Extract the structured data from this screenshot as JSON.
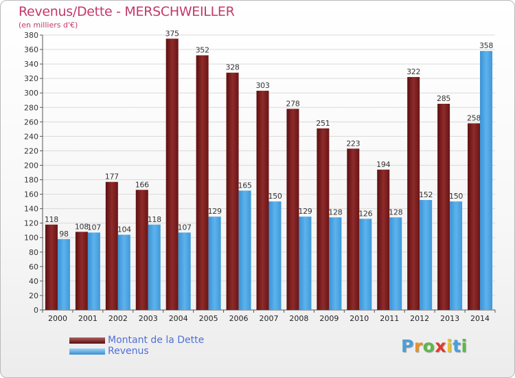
{
  "chart_data": {
    "type": "bar",
    "title": "Revenus/Dette - MERSCHWEILLER",
    "subtitle": "(en milliers d'€)",
    "categories": [
      "2000",
      "2001",
      "2002",
      "2003",
      "2004",
      "2005",
      "2006",
      "2007",
      "2008",
      "2009",
      "2010",
      "2011",
      "2012",
      "2013",
      "2014"
    ],
    "series": [
      {
        "name": "Montant de la Dette",
        "color": "#7a1c1c",
        "values": [
          118,
          108,
          177,
          166,
          375,
          352,
          328,
          303,
          278,
          251,
          223,
          194,
          322,
          285,
          258
        ]
      },
      {
        "name": "Revenus",
        "color": "#4aa3e3",
        "values": [
          98,
          107,
          104,
          118,
          107,
          129,
          165,
          150,
          129,
          128,
          126,
          128,
          152,
          150,
          358
        ]
      }
    ],
    "ylim": [
      0,
      380
    ],
    "ytick_step": 20,
    "grid": true,
    "legend_position": "bottom-left"
  },
  "logo": {
    "text": "Proxiti",
    "letter_colors": [
      "#4a9fd8",
      "#e8902a",
      "#5cb848",
      "#e03a2f",
      "#e8c22a",
      "#4a9fd8",
      "#5cb848"
    ]
  }
}
